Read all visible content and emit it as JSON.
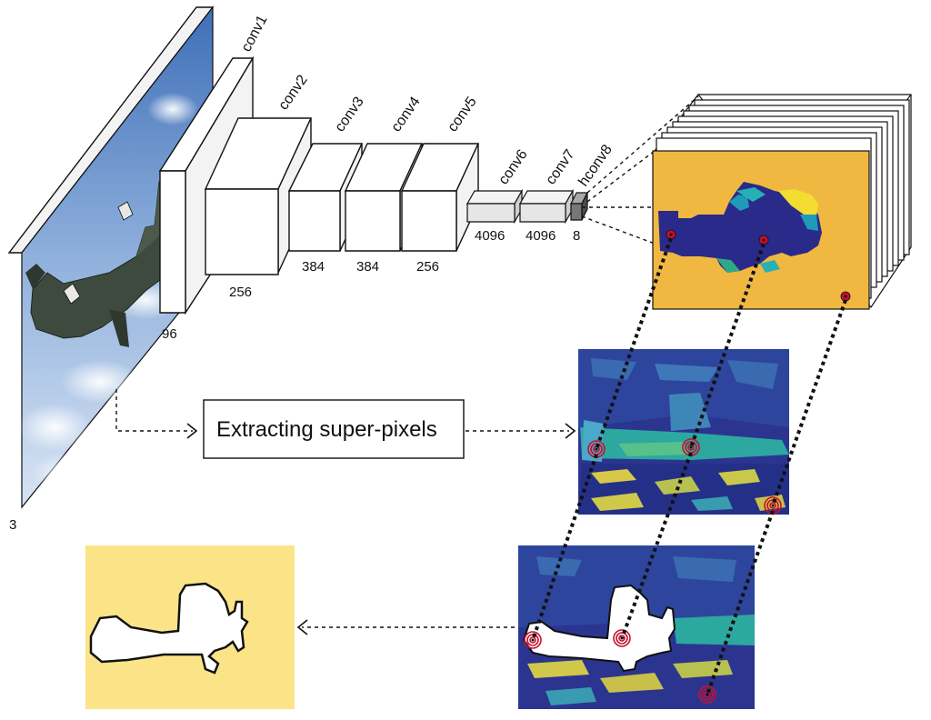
{
  "network": {
    "input_depth": "3",
    "layers": [
      {
        "name": "conv1",
        "depth": "96"
      },
      {
        "name": "conv2",
        "depth": "256"
      },
      {
        "name": "conv3",
        "depth": "384"
      },
      {
        "name": "conv4",
        "depth": "384"
      },
      {
        "name": "conv5",
        "depth": "256"
      },
      {
        "name": "conv6",
        "depth": "4096"
      },
      {
        "name": "conv7",
        "depth": "4096"
      },
      {
        "name": "hconv8",
        "depth": "8"
      }
    ]
  },
  "process": {
    "label": "Extracting super-pixels"
  },
  "colors": {
    "hash_map_bg": "#f0b840",
    "hash_map_object": "#2a2a8a",
    "superpixel_bg": "#2b3590",
    "result_bg": "#fbe488",
    "marker": "#c8102e"
  },
  "icons": {
    "input_image": "airplane-photo",
    "result_mask": "airplane-silhouette"
  }
}
